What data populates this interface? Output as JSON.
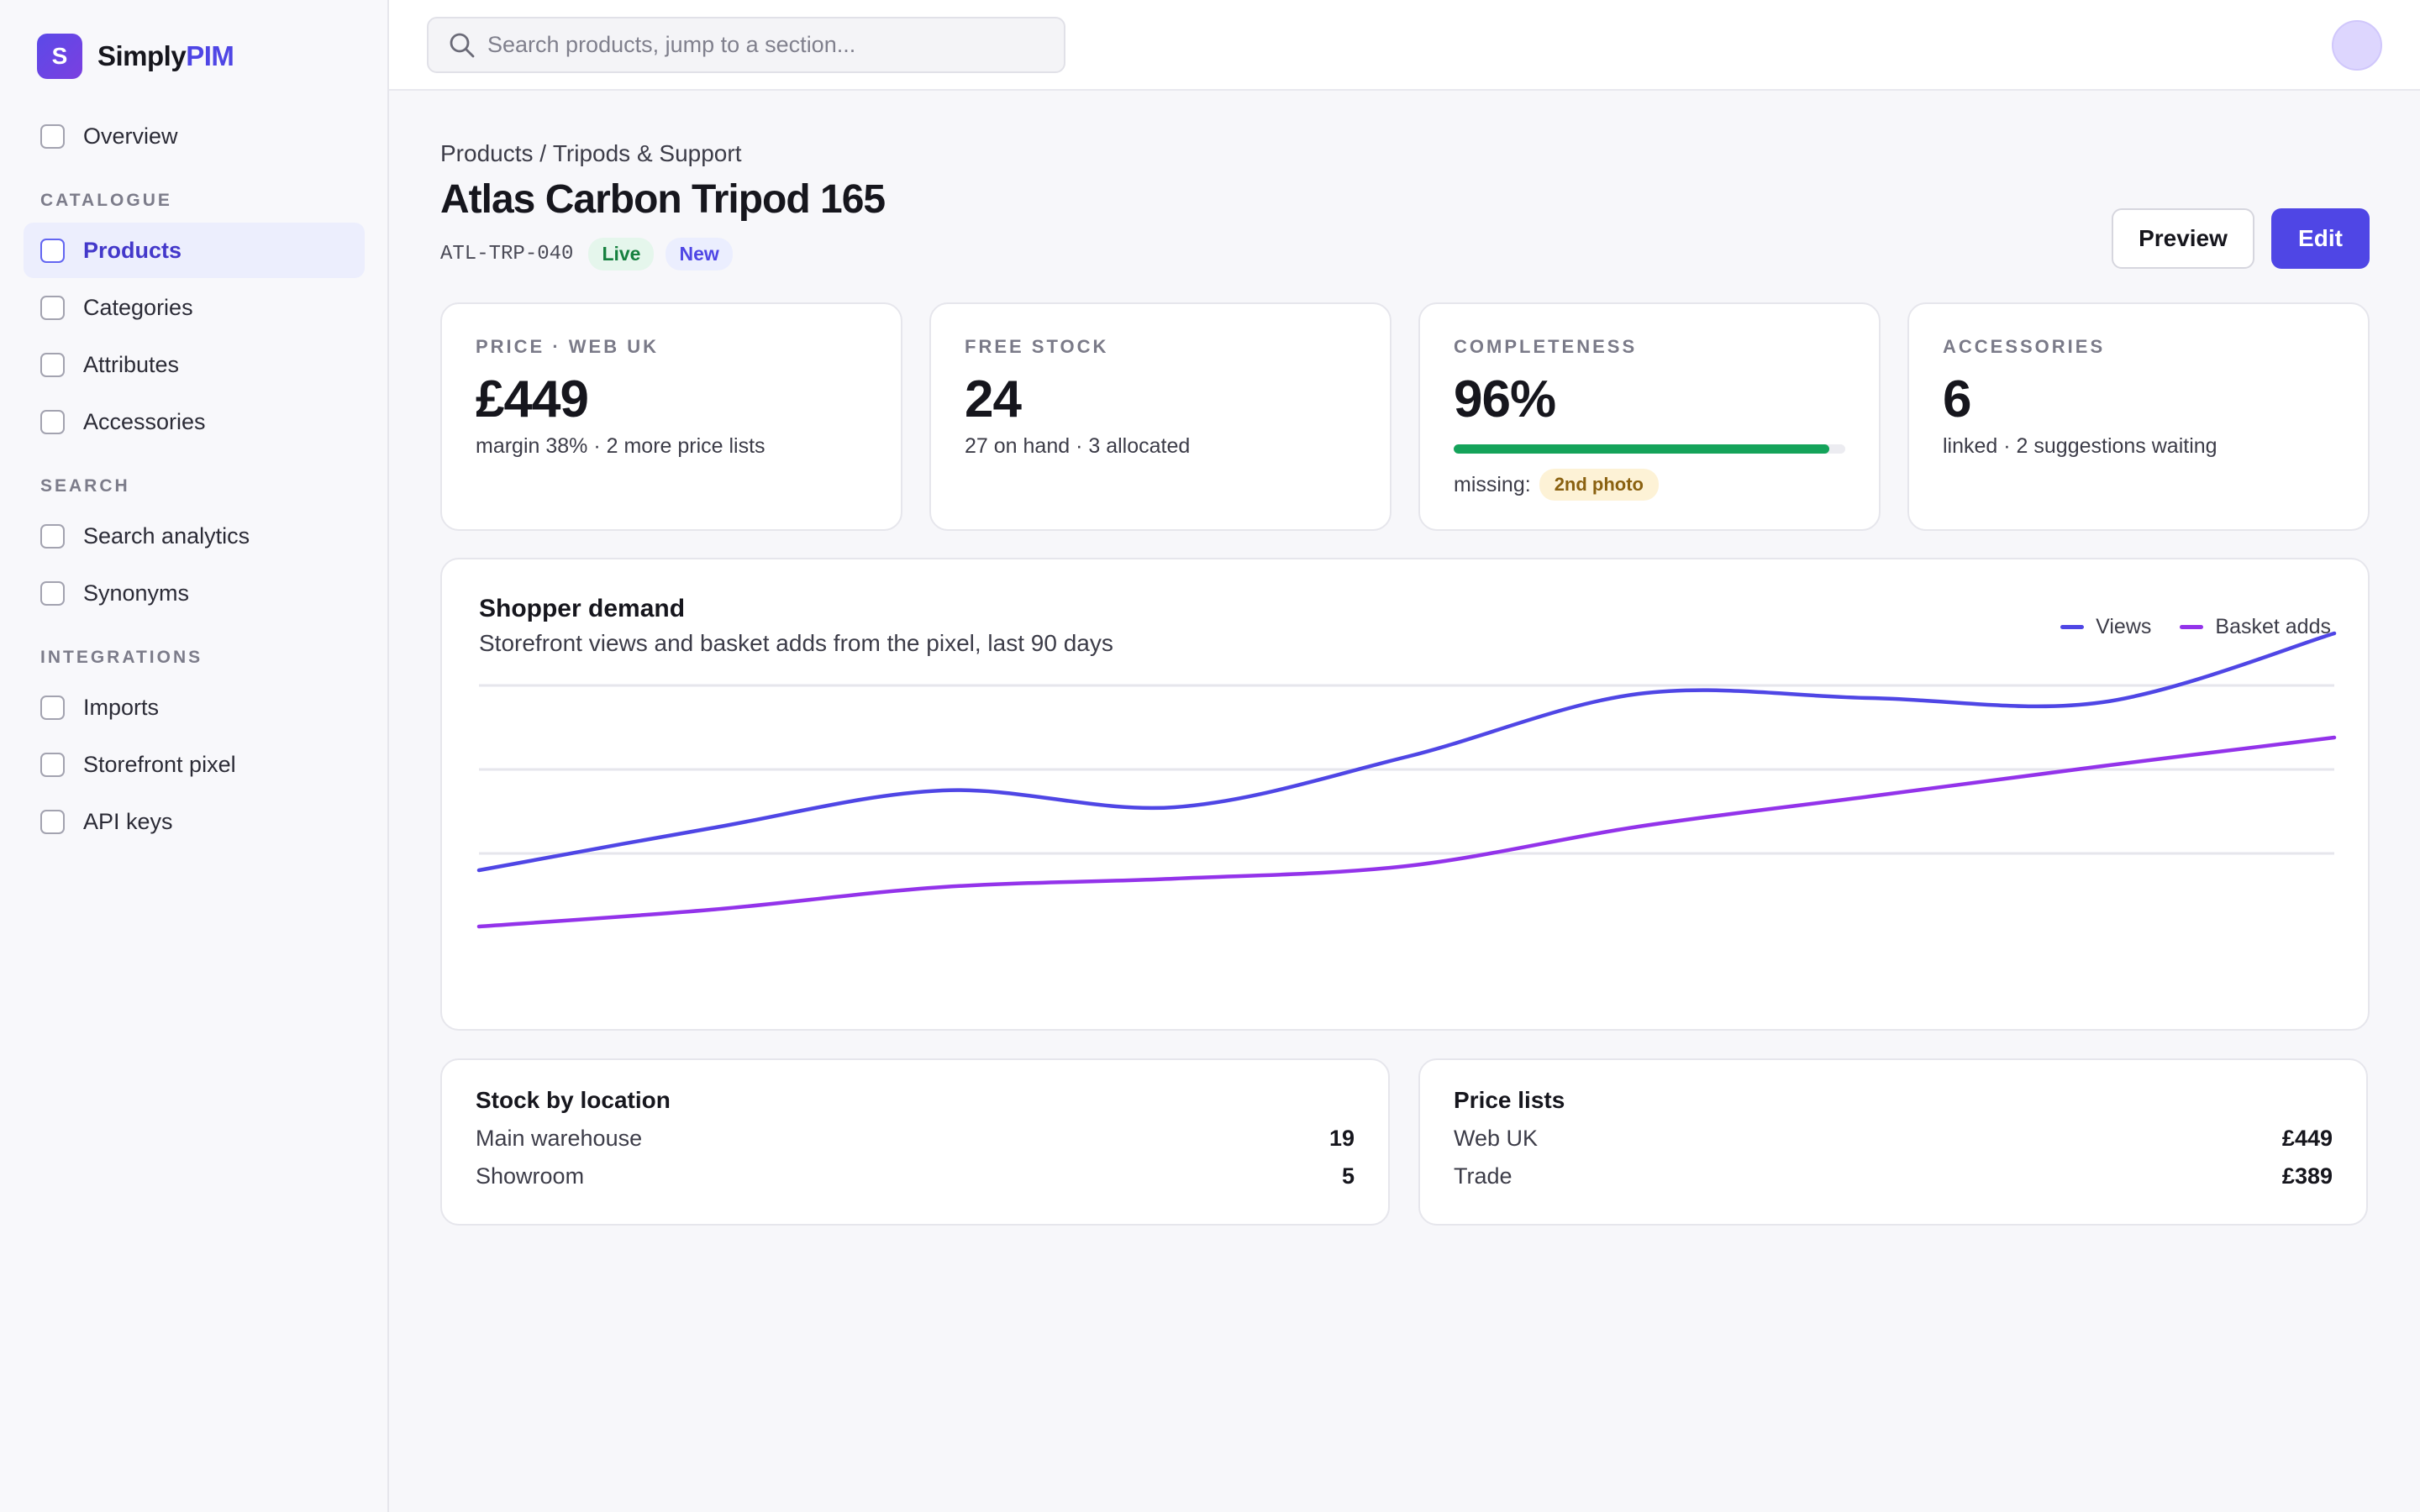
{
  "brand": {
    "mark": "S",
    "name_plain": "Simply",
    "name_accent": "PIM"
  },
  "sidebar": {
    "items": [
      {
        "label": "Overview"
      },
      {
        "label": "Products",
        "active": true
      },
      {
        "label": "Categories"
      },
      {
        "label": "Attributes"
      },
      {
        "label": "Accessories"
      },
      {
        "label": "Search analytics"
      },
      {
        "label": "Synonyms"
      },
      {
        "label": "Imports"
      },
      {
        "label": "Storefront pixel"
      },
      {
        "label": "API keys"
      }
    ],
    "sections": [
      "CATALOGUE",
      "SEARCH",
      "INTEGRATIONS"
    ]
  },
  "search": {
    "placeholder": "Search products, jump to a section...",
    "value": ""
  },
  "header": {
    "breadcrumb": [
      "Products",
      "/",
      "Tripods & Support"
    ],
    "title": "Atlas Carbon Tripod 165",
    "sku": "ATL-TRP-040",
    "badges": [
      "Live",
      "New"
    ],
    "preview_label": "Preview",
    "edit_label": "Edit"
  },
  "stats": [
    {
      "label": "PRICE · WEB UK",
      "value": "£449",
      "sub": "margin 38% · 2 more price lists"
    },
    {
      "label": "FREE STOCK",
      "value": "24",
      "sub": "27 on hand · 3 allocated"
    },
    {
      "label": "COMPLETENESS",
      "value": "96%",
      "progress": 0.96,
      "missing_label": "missing:",
      "missing_chip": "2nd photo"
    },
    {
      "label": "ACCESSORIES",
      "value": "6",
      "sub": "linked · 2 suggestions waiting"
    }
  ],
  "demand": {
    "title": "Shopper demand",
    "subtitle": "Storefront views and basket adds from the pixel, last 90 days",
    "legend": [
      "Views",
      "Basket adds"
    ]
  },
  "chart_data": {
    "type": "line",
    "title": "Shopper demand",
    "x": [
      0,
      1,
      2,
      3,
      4,
      5,
      6,
      7,
      8
    ],
    "ylim": [
      0,
      4
    ],
    "grid": true,
    "legend_position": "top-right",
    "series": [
      {
        "name": "Views",
        "color": "#4f46e5",
        "values": [
          1.4,
          1.9,
          2.35,
          2.15,
          2.75,
          3.5,
          3.45,
          3.4,
          4.22
        ]
      },
      {
        "name": "Basket adds",
        "color": "#9333ea",
        "values": [
          0.73,
          0.93,
          1.2,
          1.3,
          1.45,
          1.92,
          2.28,
          2.64,
          2.98
        ]
      }
    ]
  },
  "stock": {
    "title": "Stock by location",
    "rows": [
      {
        "label": "Main warehouse",
        "value": "19"
      },
      {
        "label": "Showroom",
        "value": "5"
      }
    ]
  },
  "prices": {
    "title": "Price lists",
    "rows": [
      {
        "label": "Web UK",
        "value": "£449"
      },
      {
        "label": "Trade",
        "value": "£389"
      }
    ]
  },
  "colors": {
    "accent": "#4f46e5",
    "success": "#14a35a",
    "warning": "#fdf2d6"
  }
}
